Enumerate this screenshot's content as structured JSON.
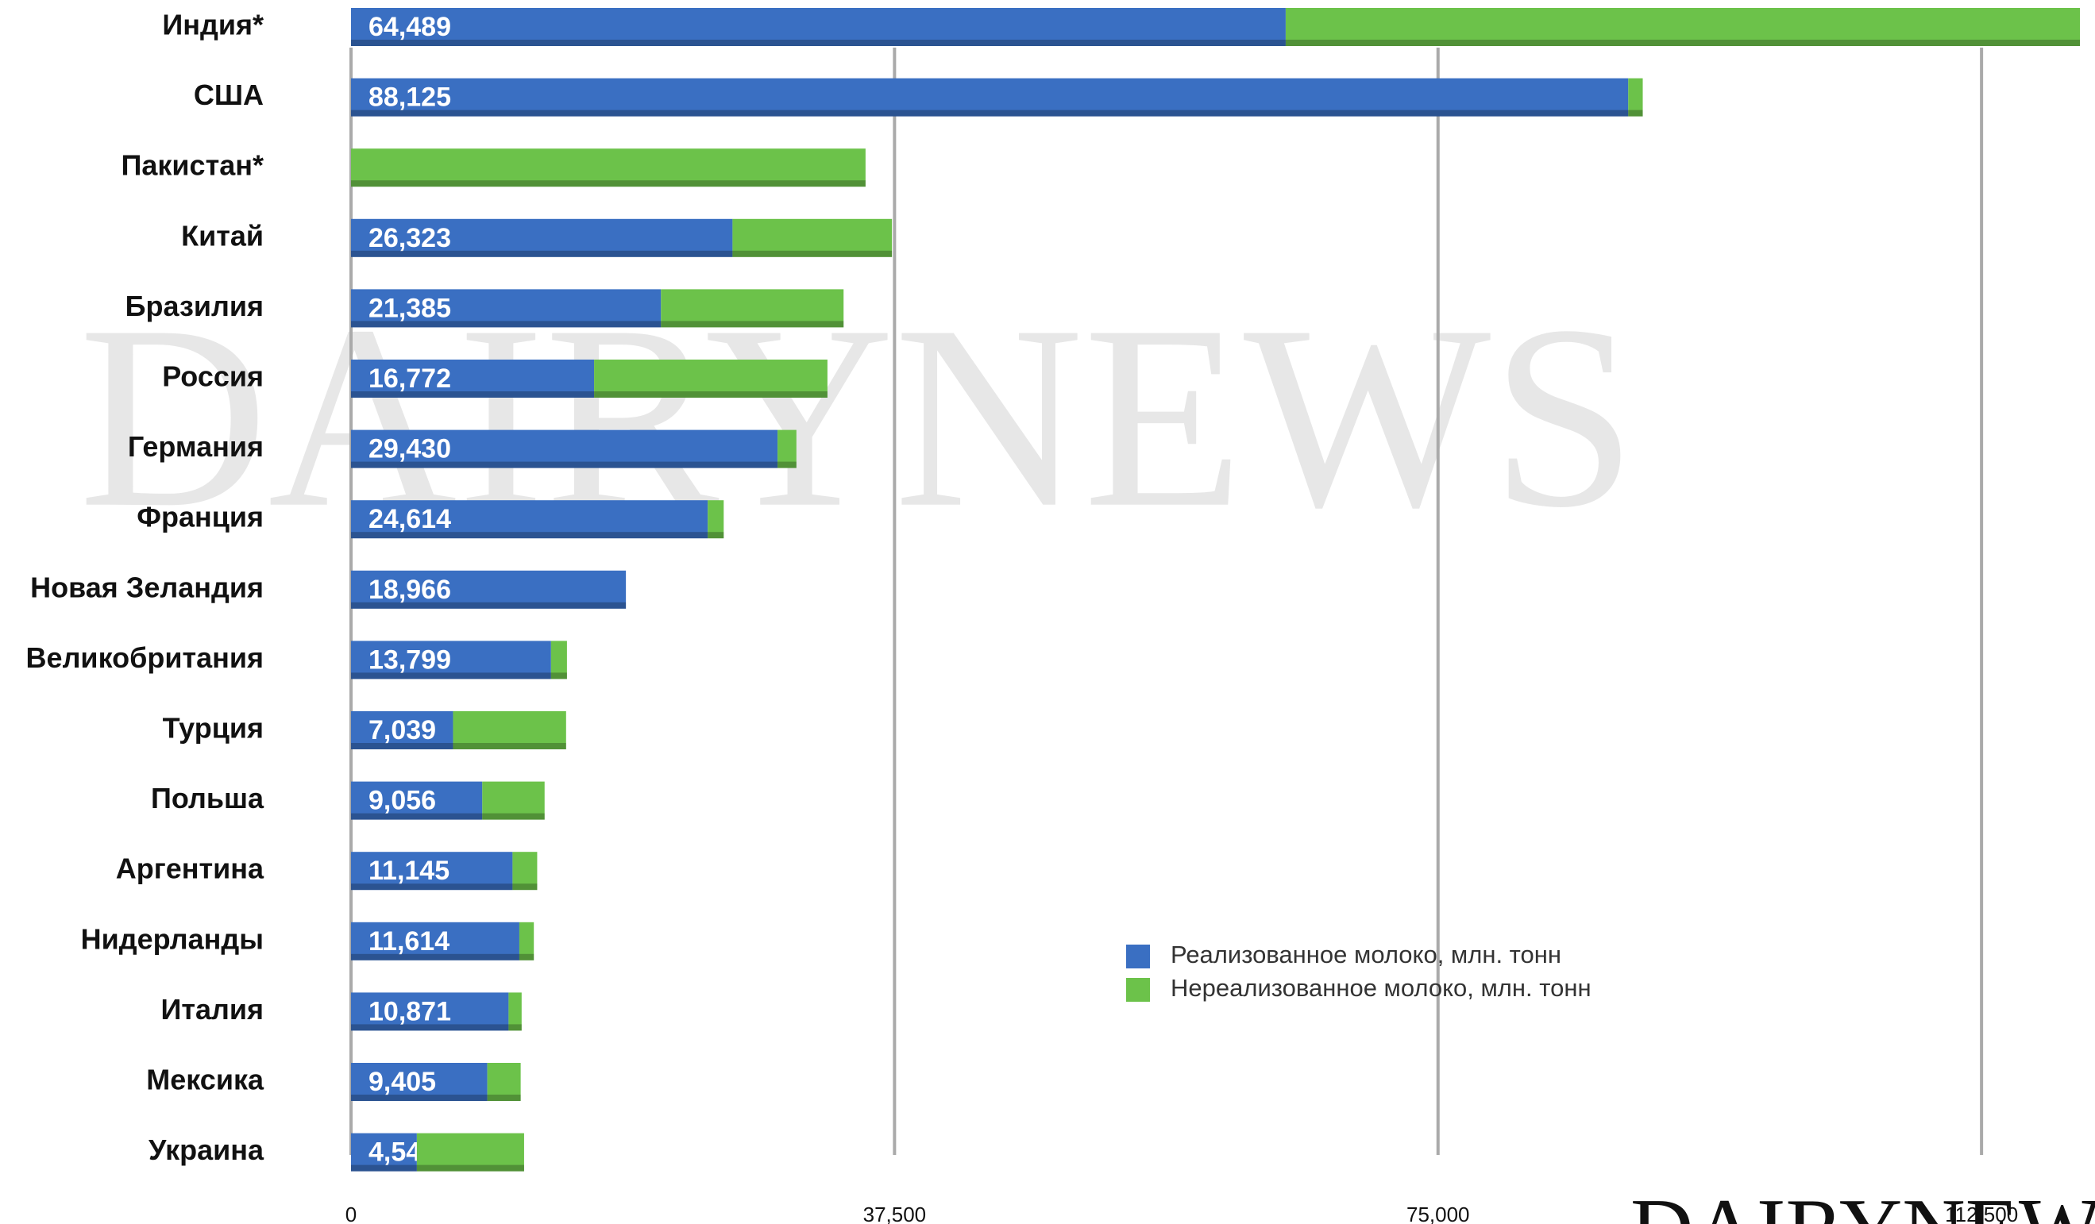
{
  "chart_data": {
    "type": "stacked_bar_horizontal",
    "watermark": "DAIRYNEWS",
    "categories": [
      "Индия*",
      "США",
      "Пакистан*",
      "Китай",
      "Бразилия",
      "Россия",
      "Германия",
      "Франция",
      "Новая Зеландия",
      "Великобритания",
      "Турция",
      "Польша",
      "Аргентина",
      "Нидерланды",
      "Италия",
      "Мексика",
      "Украина"
    ],
    "series": [
      {
        "name": "Реализованное молоко, млн. тонн",
        "color": "#3a6fc2",
        "values": [
          64489,
          88125,
          null,
          26323,
          21385,
          16772,
          29430,
          24614,
          18966,
          13799,
          7039,
          9056,
          11145,
          11614,
          10871,
          9405,
          4542
        ],
        "value_labels": [
          "64,489",
          "88,125",
          null,
          "26,323",
          "21,385",
          "16,772",
          "29,430",
          "24,614",
          "18,966",
          "13,799",
          "7,039",
          "9,056",
          "11,145",
          "11,614",
          "10,871",
          "9,405",
          "4,542"
        ]
      },
      {
        "name": "Нереализованное молоко, млн. тонн",
        "color": "#6cc24a",
        "values": [
          54800,
          1000,
          35500,
          11000,
          12600,
          16100,
          1300,
          1100,
          0,
          1100,
          7800,
          4300,
          1700,
          1000,
          900,
          2300,
          7400
        ]
      }
    ],
    "xlim": [
      0,
      120000
    ],
    "xticks": [
      0,
      {
        "value": 37500,
        "label": "37,500"
      },
      {
        "value": 75000,
        "label": "75,000"
      },
      {
        "value": 112500,
        "label": "112,500"
      }
    ],
    "grid": true,
    "legend": "lower right"
  }
}
